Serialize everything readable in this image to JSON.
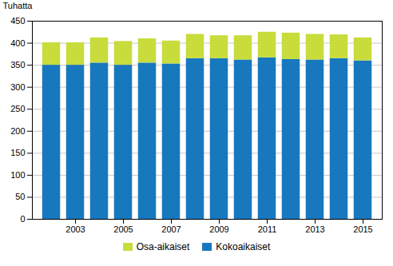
{
  "chart_data": {
    "type": "bar",
    "stacked": true,
    "ylabel": "Tuhatta",
    "x": [
      2002,
      2003,
      2004,
      2005,
      2006,
      2007,
      2008,
      2009,
      2010,
      2011,
      2012,
      2013,
      2014,
      2015
    ],
    "series": [
      {
        "name": "Kokoaikaiset",
        "color": "#1878BE",
        "values": [
          350,
          350,
          355,
          350,
          355,
          353,
          365,
          365,
          362,
          367,
          363,
          362,
          365,
          360
        ]
      },
      {
        "name": "Osa-aikaiset",
        "color": "#C8DC3C",
        "values": [
          51,
          51,
          57,
          54,
          55,
          52,
          55,
          52,
          55,
          58,
          60,
          58,
          54,
          52
        ]
      }
    ],
    "xlim": [
      2001.2,
      2015.8
    ],
    "xticks": [
      2003,
      2005,
      2007,
      2009,
      2011,
      2013,
      2015
    ],
    "ylim": [
      0,
      450
    ],
    "yticks": [
      0,
      50,
      100,
      150,
      200,
      250,
      300,
      350,
      400,
      450
    ],
    "grid": true,
    "legend": "bottom"
  }
}
